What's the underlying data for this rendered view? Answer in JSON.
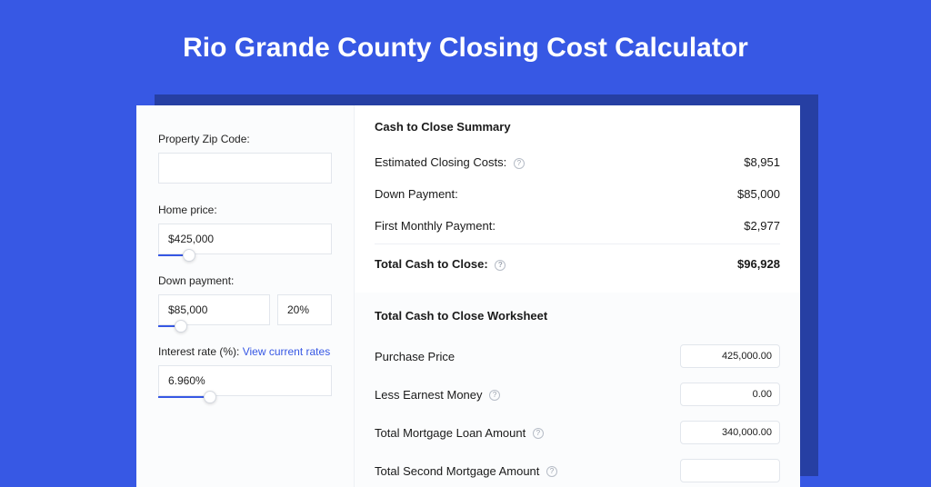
{
  "colors": {
    "page_bg": "#3758e4",
    "card_shadow": "#263fa3",
    "card_bg": "#ffffff",
    "sidebar_bg": "#fbfcfd",
    "border": "#e2e6ec",
    "link": "#3758e4",
    "text": "#1a1a1a"
  },
  "header": {
    "title": "Rio Grande County Closing Cost Calculator"
  },
  "sidebar": {
    "zip_label": "Property Zip Code:",
    "zip_value": "",
    "home_price_label": "Home price:",
    "home_price_value": "$425,000",
    "home_price_slider_pct": 18,
    "down_payment_label": "Down payment:",
    "down_payment_value": "$85,000",
    "down_payment_pct_value": "20%",
    "down_payment_slider_pct": 20,
    "interest_label": "Interest rate (%): ",
    "interest_link": "View current rates",
    "interest_value": "6.960%",
    "interest_slider_pct": 30
  },
  "summary": {
    "title": "Cash to Close Summary",
    "rows": [
      {
        "label": "Estimated Closing Costs:",
        "help": true,
        "value": "$8,951"
      },
      {
        "label": "Down Payment:",
        "help": false,
        "value": "$85,000"
      },
      {
        "label": "First Monthly Payment:",
        "help": false,
        "value": "$2,977"
      }
    ],
    "total_label": "Total Cash to Close:",
    "total_value": "$96,928"
  },
  "worksheet": {
    "title": "Total Cash to Close Worksheet",
    "rows": [
      {
        "label": "Purchase Price",
        "help": false,
        "value": "425,000.00"
      },
      {
        "label": "Less Earnest Money",
        "help": true,
        "value": "0.00"
      },
      {
        "label": "Total Mortgage Loan Amount",
        "help": true,
        "value": "340,000.00"
      },
      {
        "label": "Total Second Mortgage Amount",
        "help": true,
        "value": ""
      }
    ]
  }
}
